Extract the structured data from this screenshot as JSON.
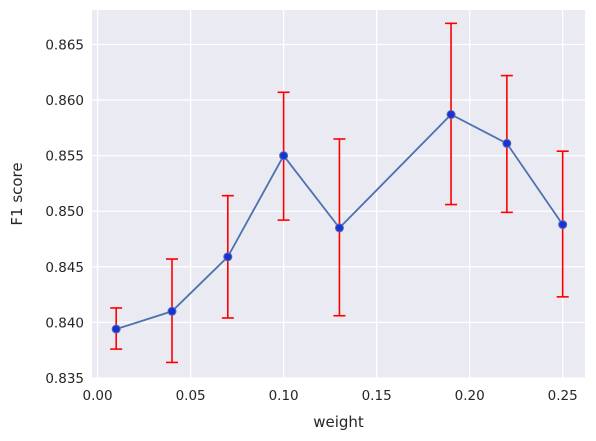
{
  "chart_data": {
    "type": "line",
    "title": "",
    "xlabel": "weight",
    "ylabel": "F1 score",
    "xlim": [
      -0.003,
      0.262
    ],
    "ylim": [
      0.835,
      0.8681
    ],
    "x_ticks": [
      0.0,
      0.05,
      0.1,
      0.15,
      0.2,
      0.25
    ],
    "x_tick_labels": [
      "0.00",
      "0.05",
      "0.10",
      "0.15",
      "0.20",
      "0.25"
    ],
    "y_ticks": [
      0.835,
      0.84,
      0.845,
      0.85,
      0.855,
      0.86,
      0.865
    ],
    "y_tick_labels": [
      "0.835",
      "0.840",
      "0.845",
      "0.850",
      "0.855",
      "0.860",
      "0.865"
    ],
    "grid": true,
    "background": "#eaeaf2",
    "line_color": "#4c72b0",
    "marker_color": "#1f2fd8",
    "errorbar_color": "#ff0000",
    "series": [
      {
        "x": [
          0.01,
          0.04,
          0.07,
          0.1,
          0.13,
          0.19,
          0.22,
          0.25
        ],
        "y": [
          0.8394,
          0.841,
          0.8459,
          0.855,
          0.8485,
          0.8587,
          0.8561,
          0.8488
        ],
        "err_low": [
          0.8376,
          0.8364,
          0.8404,
          0.8492,
          0.8406,
          0.8506,
          0.8499,
          0.8423
        ],
        "err_high": [
          0.8413,
          0.8457,
          0.8514,
          0.8607,
          0.8565,
          0.8669,
          0.8622,
          0.8554
        ]
      }
    ]
  }
}
